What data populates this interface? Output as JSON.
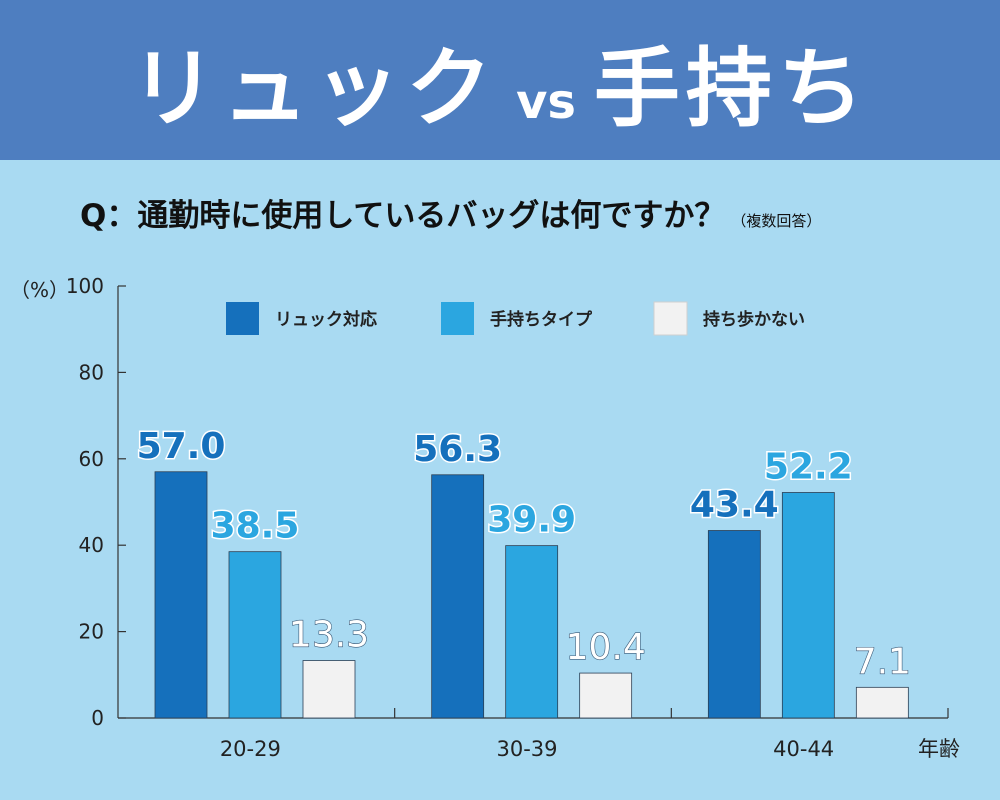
{
  "header": {
    "title_part1": "リュック",
    "title_vs": "vs",
    "title_part2": "手持ち",
    "background_color": "#4e7ec0"
  },
  "question": {
    "text": "Q：通勤時に使用しているバッグは何ですか？",
    "note": "（複数回答）"
  },
  "chart_data": {
    "type": "bar",
    "categories": [
      "20-29",
      "30-39",
      "40-44"
    ],
    "series": [
      {
        "name": "リュック対応",
        "values": [
          57.0,
          56.3,
          43.4
        ],
        "color": "#1570bc"
      },
      {
        "name": "手持ちタイプ",
        "values": [
          38.5,
          39.9,
          52.2
        ],
        "color": "#2ba6e0"
      },
      {
        "name": "持ち歩かない",
        "values": [
          13.3,
          10.4,
          7.1
        ],
        "color": "#f2f2f2"
      }
    ],
    "value_labels": [
      [
        "57.0",
        "56.3",
        "43.4"
      ],
      [
        "38.5",
        "39.9",
        "52.2"
      ],
      [
        "13.3",
        "10.4",
        "7.1"
      ]
    ],
    "y_ticks": [
      "0",
      "20",
      "40",
      "60",
      "80",
      "100"
    ],
    "ylim": [
      0,
      100
    ],
    "ylabel": "（%）",
    "xlabel": "年齢",
    "grid": false,
    "legend_position": "top"
  }
}
